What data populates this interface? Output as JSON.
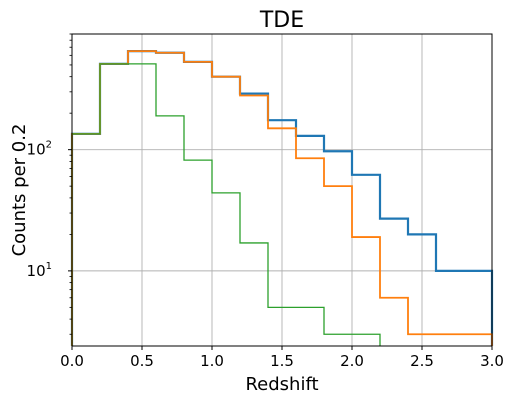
{
  "chart_data": {
    "type": "step-histogram",
    "title": "TDE",
    "xlabel": "Redshift",
    "ylabel": "Counts per 0.2",
    "xlim": [
      0,
      3.0
    ],
    "ylim": [
      2.4,
      900
    ],
    "yscale": "log",
    "grid": true,
    "bin_edges": [
      0.0,
      0.2,
      0.4,
      0.6,
      0.8,
      1.0,
      1.2,
      1.4,
      1.6,
      1.8,
      2.0,
      2.2,
      2.4,
      2.6,
      2.8,
      3.0
    ],
    "xticks": [
      "0.0",
      "0.5",
      "1.0",
      "1.5",
      "2.0",
      "2.5",
      "3.0"
    ],
    "yticks": [
      {
        "base": "10",
        "exp": "1",
        "value": 10
      },
      {
        "base": "10",
        "exp": "2",
        "value": 100
      }
    ],
    "series": [
      {
        "color": "#1f77b4",
        "stroke_width": 2.2,
        "values": [
          135,
          510,
          650,
          630,
          530,
          400,
          290,
          175,
          130,
          97,
          62,
          27,
          20,
          10,
          10
        ]
      },
      {
        "color": "#ff7f0e",
        "stroke_width": 1.8,
        "values": [
          135,
          510,
          650,
          630,
          530,
          400,
          280,
          150,
          85,
          50,
          19,
          6,
          3,
          3,
          3
        ]
      },
      {
        "color": "#2ca02c",
        "stroke_width": 1.3,
        "values": [
          135,
          510,
          510,
          190,
          82,
          44,
          17,
          5,
          5,
          3,
          3,
          null,
          null,
          null,
          null
        ]
      }
    ]
  }
}
